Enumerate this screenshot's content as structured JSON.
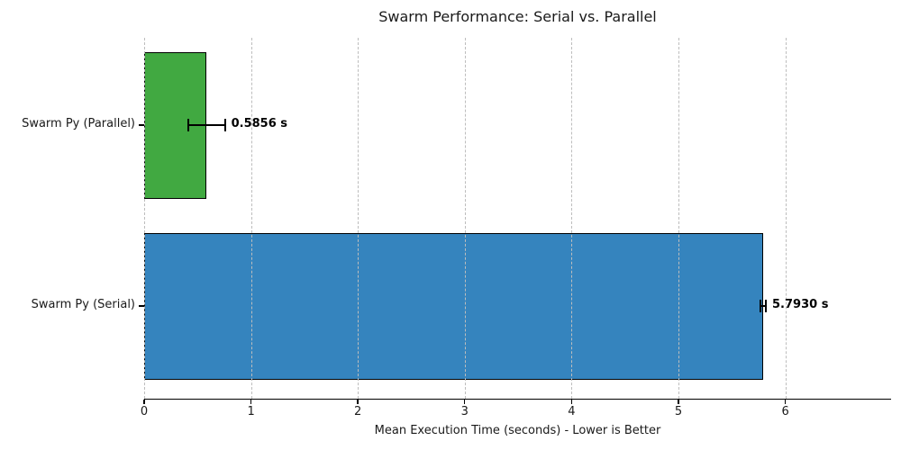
{
  "chart_data": {
    "type": "bar",
    "orientation": "horizontal",
    "title": "Swarm Performance: Serial vs. Parallel",
    "xlabel": "Mean Execution Time (seconds) - Lower is Better",
    "categories": [
      "Swarm Py (Parallel)",
      "Swarm Py (Serial)"
    ],
    "series": [
      {
        "name": "Mean Execution Time",
        "values": [
          0.5856,
          5.793
        ],
        "errors": [
          0.17,
          0.025
        ]
      }
    ],
    "value_labels": [
      "0.5856 s",
      "5.7930 s"
    ],
    "bar_colors": [
      "#41a941",
      "#3584be"
    ],
    "bar_edge_color": "#000000",
    "xlim": [
      0,
      6.99
    ],
    "xticks": [
      0,
      1,
      2,
      3,
      4,
      5,
      6
    ],
    "grid": {
      "axis": "x",
      "style": "dashed",
      "color": "#bdbdbd",
      "above_bars": true
    },
    "legend": "none",
    "background": "#ffffff"
  }
}
